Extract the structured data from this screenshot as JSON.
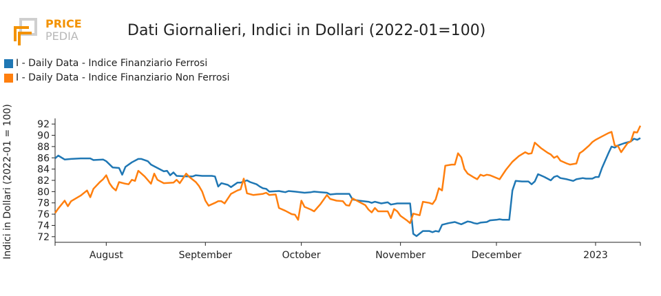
{
  "logo": {
    "line1": "PRICE",
    "line2": "PEDIA"
  },
  "chart_data": {
    "type": "line",
    "title": "Dati Giornalieri, Indici in Dollari (2022-01=100)",
    "ylabel": "Indici in Dollari (2022-01 = 100)",
    "xlabel": "",
    "xlim": [
      "2022-07-16",
      "2023-01-15"
    ],
    "ylim": [
      71,
      93
    ],
    "y_ticks": [
      72,
      74,
      76,
      78,
      80,
      82,
      84,
      86,
      88,
      90,
      92
    ],
    "x_ticks": [
      {
        "date": "2022-08-01",
        "label": "August"
      },
      {
        "date": "2022-09-01",
        "label": "September"
      },
      {
        "date": "2022-10-01",
        "label": "October"
      },
      {
        "date": "2022-11-01",
        "label": "November"
      },
      {
        "date": "2022-12-01",
        "label": "December"
      },
      {
        "date": "2023-01-01",
        "label": "2023"
      }
    ],
    "grid": false,
    "legend_position": "top-left",
    "series": [
      {
        "name": "I - Daily Data - Indice Finanziario Ferrosi",
        "color": "#1f77b4",
        "points": [
          [
            "2022-07-16",
            85.9
          ],
          [
            "2022-07-17",
            86.4
          ],
          [
            "2022-07-19",
            85.7
          ],
          [
            "2022-07-21",
            85.8
          ],
          [
            "2022-07-24",
            85.9
          ],
          [
            "2022-07-27",
            85.9
          ],
          [
            "2022-07-28",
            85.6
          ],
          [
            "2022-07-31",
            85.7
          ],
          [
            "2022-08-01",
            85.4
          ],
          [
            "2022-08-03",
            84.3
          ],
          [
            "2022-08-05",
            84.2
          ],
          [
            "2022-08-06",
            83.0
          ],
          [
            "2022-08-07",
            84.4
          ],
          [
            "2022-08-09",
            85.2
          ],
          [
            "2022-08-11",
            85.8
          ],
          [
            "2022-08-12",
            85.8
          ],
          [
            "2022-08-14",
            85.4
          ],
          [
            "2022-08-15",
            84.8
          ],
          [
            "2022-08-17",
            84.2
          ],
          [
            "2022-08-19",
            83.6
          ],
          [
            "2022-08-20",
            83.7
          ],
          [
            "2022-08-21",
            82.9
          ],
          [
            "2022-08-22",
            83.4
          ],
          [
            "2022-08-23",
            82.8
          ],
          [
            "2022-08-26",
            82.7
          ],
          [
            "2022-08-28",
            82.7
          ],
          [
            "2022-08-29",
            82.9
          ],
          [
            "2022-08-31",
            82.8
          ],
          [
            "2022-09-03",
            82.8
          ],
          [
            "2022-09-04",
            82.7
          ],
          [
            "2022-09-05",
            80.9
          ],
          [
            "2022-09-06",
            81.5
          ],
          [
            "2022-09-08",
            81.2
          ],
          [
            "2022-09-09",
            80.8
          ],
          [
            "2022-09-11",
            81.6
          ],
          [
            "2022-09-12",
            81.6
          ],
          [
            "2022-09-14",
            82.0
          ],
          [
            "2022-09-15",
            81.7
          ],
          [
            "2022-09-17",
            81.3
          ],
          [
            "2022-09-18",
            80.9
          ],
          [
            "2022-09-19",
            80.6
          ],
          [
            "2022-09-20",
            80.5
          ],
          [
            "2022-09-21",
            80.0
          ],
          [
            "2022-09-24",
            80.1
          ],
          [
            "2022-09-25",
            80.0
          ],
          [
            "2022-09-26",
            79.9
          ],
          [
            "2022-09-27",
            80.1
          ],
          [
            "2022-09-29",
            80.0
          ],
          [
            "2022-10-02",
            79.8
          ],
          [
            "2022-10-04",
            79.9
          ],
          [
            "2022-10-05",
            80.0
          ],
          [
            "2022-10-07",
            79.9
          ],
          [
            "2022-10-09",
            79.8
          ],
          [
            "2022-10-10",
            79.5
          ],
          [
            "2022-10-12",
            79.6
          ],
          [
            "2022-10-14",
            79.6
          ],
          [
            "2022-10-16",
            79.6
          ],
          [
            "2022-10-17",
            78.6
          ],
          [
            "2022-10-19",
            78.4
          ],
          [
            "2022-10-22",
            78.2
          ],
          [
            "2022-10-23",
            78.0
          ],
          [
            "2022-10-24",
            78.2
          ],
          [
            "2022-10-26",
            77.9
          ],
          [
            "2022-10-28",
            78.1
          ],
          [
            "2022-10-29",
            77.7
          ],
          [
            "2022-10-31",
            77.9
          ],
          [
            "2022-11-04",
            77.9
          ],
          [
            "2022-11-05",
            72.5
          ],
          [
            "2022-11-06",
            72.1
          ],
          [
            "2022-11-08",
            73.0
          ],
          [
            "2022-11-10",
            73.0
          ],
          [
            "2022-11-11",
            72.8
          ],
          [
            "2022-11-12",
            73.0
          ],
          [
            "2022-11-13",
            72.9
          ],
          [
            "2022-11-14",
            74.1
          ],
          [
            "2022-11-16",
            74.4
          ],
          [
            "2022-11-18",
            74.6
          ],
          [
            "2022-11-19",
            74.4
          ],
          [
            "2022-11-20",
            74.2
          ],
          [
            "2022-11-22",
            74.7
          ],
          [
            "2022-11-23",
            74.6
          ],
          [
            "2022-11-24",
            74.4
          ],
          [
            "2022-11-25",
            74.3
          ],
          [
            "2022-11-26",
            74.5
          ],
          [
            "2022-11-28",
            74.6
          ],
          [
            "2022-11-29",
            74.9
          ],
          [
            "2022-12-01",
            75.0
          ],
          [
            "2022-12-02",
            75.1
          ],
          [
            "2022-12-03",
            75.0
          ],
          [
            "2022-12-05",
            75.0
          ],
          [
            "2022-12-06",
            80.2
          ],
          [
            "2022-12-07",
            81.9
          ],
          [
            "2022-12-09",
            81.8
          ],
          [
            "2022-12-11",
            81.8
          ],
          [
            "2022-12-12",
            81.3
          ],
          [
            "2022-12-13",
            81.8
          ],
          [
            "2022-12-14",
            83.1
          ],
          [
            "2022-12-16",
            82.6
          ],
          [
            "2022-12-18",
            82.0
          ],
          [
            "2022-12-19",
            82.6
          ],
          [
            "2022-12-20",
            82.8
          ],
          [
            "2022-12-21",
            82.4
          ],
          [
            "2022-12-23",
            82.2
          ],
          [
            "2022-12-25",
            81.9
          ],
          [
            "2022-12-26",
            82.2
          ],
          [
            "2022-12-28",
            82.4
          ],
          [
            "2022-12-29",
            82.3
          ],
          [
            "2022-12-31",
            82.3
          ],
          [
            "2023-01-01",
            82.6
          ],
          [
            "2023-01-02",
            82.6
          ],
          [
            "2023-01-03",
            84.2
          ],
          [
            "2023-01-05",
            86.8
          ],
          [
            "2023-01-06",
            88.0
          ],
          [
            "2023-01-07",
            87.8
          ],
          [
            "2023-01-08",
            88.2
          ],
          [
            "2023-01-10",
            88.6
          ],
          [
            "2023-01-12",
            88.9
          ],
          [
            "2023-01-13",
            89.4
          ],
          [
            "2023-01-14",
            89.2
          ],
          [
            "2023-01-15",
            89.5
          ]
        ]
      },
      {
        "name": "I - Daily Data - Indice Finanziario Non Ferrosi",
        "color": "#ff7f0e",
        "points": [
          [
            "2022-07-16",
            76.2
          ],
          [
            "2022-07-17",
            77.0
          ],
          [
            "2022-07-19",
            78.4
          ],
          [
            "2022-07-20",
            77.4
          ],
          [
            "2022-07-21",
            78.3
          ],
          [
            "2022-07-24",
            79.3
          ],
          [
            "2022-07-26",
            80.2
          ],
          [
            "2022-07-27",
            79.0
          ],
          [
            "2022-07-28",
            80.5
          ],
          [
            "2022-07-30",
            81.7
          ],
          [
            "2022-07-31",
            82.2
          ],
          [
            "2022-08-01",
            82.9
          ],
          [
            "2022-08-02",
            81.5
          ],
          [
            "2022-08-03",
            80.7
          ],
          [
            "2022-08-04",
            80.2
          ],
          [
            "2022-08-05",
            81.7
          ],
          [
            "2022-08-07",
            81.4
          ],
          [
            "2022-08-08",
            81.3
          ],
          [
            "2022-08-09",
            82.1
          ],
          [
            "2022-08-10",
            81.9
          ],
          [
            "2022-08-11",
            83.7
          ],
          [
            "2022-08-13",
            82.7
          ],
          [
            "2022-08-15",
            81.4
          ],
          [
            "2022-08-16",
            83.2
          ],
          [
            "2022-08-17",
            82.1
          ],
          [
            "2022-08-19",
            81.5
          ],
          [
            "2022-08-22",
            81.6
          ],
          [
            "2022-08-23",
            82.1
          ],
          [
            "2022-08-24",
            81.5
          ],
          [
            "2022-08-26",
            83.2
          ],
          [
            "2022-08-27",
            82.6
          ],
          [
            "2022-08-29",
            81.7
          ],
          [
            "2022-08-30",
            81.0
          ],
          [
            "2022-08-31",
            80.0
          ],
          [
            "2022-09-01",
            78.4
          ],
          [
            "2022-09-02",
            77.5
          ],
          [
            "2022-09-04",
            78.0
          ],
          [
            "2022-09-05",
            78.3
          ],
          [
            "2022-09-06",
            78.3
          ],
          [
            "2022-09-07",
            77.9
          ],
          [
            "2022-09-09",
            79.6
          ],
          [
            "2022-09-11",
            80.2
          ],
          [
            "2022-09-12",
            80.4
          ],
          [
            "2022-09-13",
            82.3
          ],
          [
            "2022-09-14",
            79.7
          ],
          [
            "2022-09-16",
            79.4
          ],
          [
            "2022-09-19",
            79.6
          ],
          [
            "2022-09-20",
            79.8
          ],
          [
            "2022-09-21",
            79.4
          ],
          [
            "2022-09-23",
            79.5
          ],
          [
            "2022-09-24",
            77.1
          ],
          [
            "2022-09-26",
            76.6
          ],
          [
            "2022-09-28",
            76.0
          ],
          [
            "2022-09-29",
            75.9
          ],
          [
            "2022-09-30",
            75.0
          ],
          [
            "2022-10-01",
            78.4
          ],
          [
            "2022-10-02",
            77.3
          ],
          [
            "2022-10-04",
            76.8
          ],
          [
            "2022-10-05",
            76.5
          ],
          [
            "2022-10-07",
            77.8
          ],
          [
            "2022-10-09",
            79.4
          ],
          [
            "2022-10-10",
            78.7
          ],
          [
            "2022-10-12",
            78.4
          ],
          [
            "2022-10-14",
            78.3
          ],
          [
            "2022-10-15",
            77.6
          ],
          [
            "2022-10-16",
            77.5
          ],
          [
            "2022-10-17",
            78.8
          ],
          [
            "2022-10-19",
            78.2
          ],
          [
            "2022-10-21",
            77.6
          ],
          [
            "2022-10-22",
            76.8
          ],
          [
            "2022-10-23",
            76.3
          ],
          [
            "2022-10-24",
            77.1
          ],
          [
            "2022-10-25",
            76.5
          ],
          [
            "2022-10-27",
            76.5
          ],
          [
            "2022-10-28",
            76.5
          ],
          [
            "2022-10-29",
            75.3
          ],
          [
            "2022-10-30",
            76.9
          ],
          [
            "2022-10-31",
            76.5
          ],
          [
            "2022-11-01",
            75.7
          ],
          [
            "2022-11-03",
            74.9
          ],
          [
            "2022-11-04",
            74.4
          ],
          [
            "2022-11-05",
            76.1
          ],
          [
            "2022-11-07",
            75.8
          ],
          [
            "2022-11-08",
            78.2
          ],
          [
            "2022-11-10",
            78.0
          ],
          [
            "2022-11-11",
            77.8
          ],
          [
            "2022-11-12",
            78.6
          ],
          [
            "2022-11-13",
            80.6
          ],
          [
            "2022-11-14",
            80.2
          ],
          [
            "2022-11-15",
            84.6
          ],
          [
            "2022-11-17",
            84.8
          ],
          [
            "2022-11-18",
            84.8
          ],
          [
            "2022-11-19",
            86.8
          ],
          [
            "2022-11-20",
            86.1
          ],
          [
            "2022-11-21",
            84.0
          ],
          [
            "2022-11-22",
            83.2
          ],
          [
            "2022-11-24",
            82.5
          ],
          [
            "2022-11-25",
            82.2
          ],
          [
            "2022-11-26",
            83.0
          ],
          [
            "2022-11-27",
            82.8
          ],
          [
            "2022-11-28",
            83.0
          ],
          [
            "2022-11-29",
            82.9
          ],
          [
            "2022-12-02",
            82.2
          ],
          [
            "2022-12-04",
            83.9
          ],
          [
            "2022-12-06",
            85.3
          ],
          [
            "2022-12-08",
            86.3
          ],
          [
            "2022-12-10",
            87.0
          ],
          [
            "2022-12-11",
            86.7
          ],
          [
            "2022-12-12",
            86.8
          ],
          [
            "2022-12-13",
            88.7
          ],
          [
            "2022-12-15",
            87.7
          ],
          [
            "2022-12-17",
            86.9
          ],
          [
            "2022-12-18",
            86.6
          ],
          [
            "2022-12-19",
            86.0
          ],
          [
            "2022-12-20",
            86.3
          ],
          [
            "2022-12-21",
            85.5
          ],
          [
            "2022-12-23",
            85.0
          ],
          [
            "2022-12-24",
            84.8
          ],
          [
            "2022-12-26",
            85.0
          ],
          [
            "2022-12-27",
            86.8
          ],
          [
            "2022-12-28",
            87.2
          ],
          [
            "2022-12-30",
            88.2
          ],
          [
            "2022-12-31",
            88.8
          ],
          [
            "2023-01-01",
            89.2
          ],
          [
            "2023-01-03",
            89.8
          ],
          [
            "2023-01-05",
            90.4
          ],
          [
            "2023-01-06",
            90.6
          ],
          [
            "2023-01-07",
            88.2
          ],
          [
            "2023-01-08",
            88.1
          ],
          [
            "2023-01-09",
            87.0
          ],
          [
            "2023-01-11",
            88.6
          ],
          [
            "2023-01-12",
            88.9
          ],
          [
            "2023-01-13",
            90.6
          ],
          [
            "2023-01-14",
            90.5
          ],
          [
            "2023-01-15",
            91.7
          ]
        ]
      }
    ]
  }
}
